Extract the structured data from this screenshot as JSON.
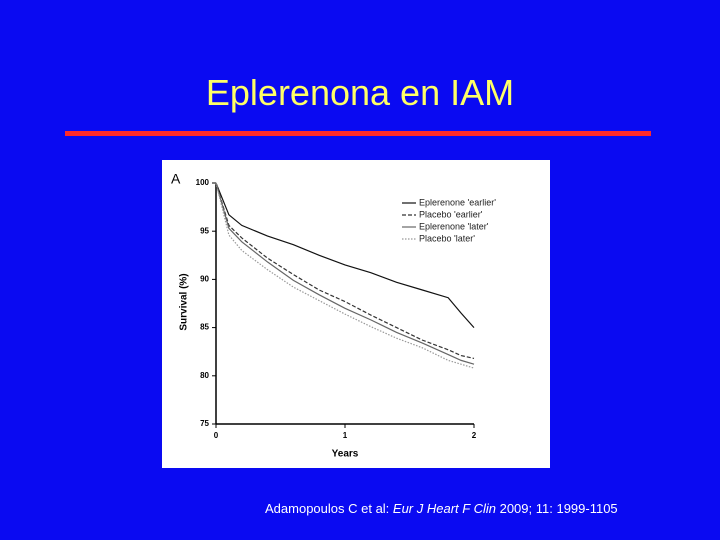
{
  "slide": {
    "title": "Eplerenona en IAM",
    "citation": {
      "authors": "Adamopoulos C et al: ",
      "journal": "Eur J Heart F Clin",
      "details": " 2009; 11: 1999-1105"
    }
  },
  "chart_data": {
    "type": "line",
    "panel_label": "A",
    "x_label": "Years",
    "y_label": "Survival (%)",
    "x": [
      0,
      0.1,
      0.2,
      0.4,
      0.6,
      0.8,
      1.0,
      1.2,
      1.4,
      1.6,
      1.8,
      1.9,
      2.0
    ],
    "series": [
      {
        "name": "Eplerenone 'earlier'",
        "color": "#111111",
        "values": [
          100,
          96.7,
          95.6,
          94.5,
          93.6,
          92.5,
          91.5,
          90.7,
          89.7,
          88.9,
          88.1,
          86.5,
          85.0
        ]
      },
      {
        "name": "Placebo 'earlier'",
        "color": "#333333",
        "values": [
          100,
          95.6,
          94.3,
          92.2,
          90.5,
          88.9,
          87.7,
          86.3,
          85.0,
          83.7,
          82.7,
          82.1,
          81.8
        ]
      },
      {
        "name": "Eplerenone 'later'",
        "color": "#666666",
        "values": [
          100,
          95.3,
          93.9,
          91.8,
          89.9,
          88.4,
          87.0,
          85.8,
          84.5,
          83.4,
          82.2,
          81.6,
          81.2
        ]
      },
      {
        "name": "Placebo 'later'",
        "color": "#999999",
        "values": [
          100,
          94.6,
          93.0,
          91.0,
          89.2,
          87.8,
          86.4,
          85.1,
          83.9,
          82.9,
          81.6,
          81.2,
          80.8
        ]
      }
    ],
    "xlim": [
      0,
      2
    ],
    "xticks": [
      0,
      1,
      2
    ],
    "ylim": [
      75,
      100
    ],
    "yticks": [
      75,
      80,
      85,
      90,
      95,
      100
    ],
    "legend": "top-right"
  }
}
